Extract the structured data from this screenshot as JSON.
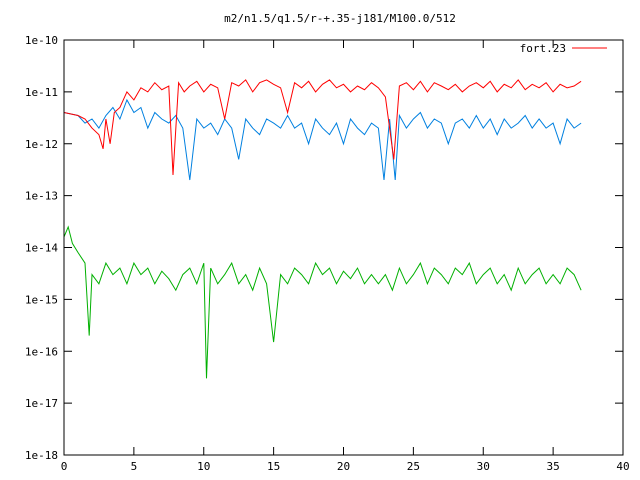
{
  "chart_data": {
    "type": "line",
    "title": "m2/n1.5/q1.5/r-+.35-j181/M100.0/512",
    "xlabel": "",
    "ylabel": "",
    "xlim": [
      0,
      40
    ],
    "ylim": [
      1e-18,
      1e-10
    ],
    "yscale": "log",
    "grid": false,
    "legend_position": "top-right",
    "x_ticks": [
      0,
      5,
      10,
      15,
      20,
      25,
      30,
      35,
      40
    ],
    "x_tick_labels": [
      "0",
      "5",
      "10",
      "15",
      "20",
      "25",
      "30",
      "35",
      "40"
    ],
    "y_ticks": [
      1e-10,
      1e-11,
      1e-12,
      1e-13,
      1e-14,
      1e-15,
      1e-16,
      1e-17,
      1e-18
    ],
    "y_tick_labels": [
      "1e-10",
      "1e-11",
      "1e-12",
      "1e-13",
      "1e-14",
      "1e-15",
      "1e-16",
      "1e-17",
      "1e-18"
    ],
    "series": [
      {
        "name": "fort.23",
        "color": "#ff0000",
        "x": [
          0,
          1,
          1.5,
          2,
          2.5,
          2.8,
          3,
          3.3,
          3.6,
          4,
          4.5,
          5,
          5.5,
          6,
          6.5,
          7,
          7.5,
          7.8,
          8.2,
          8.6,
          9,
          9.5,
          10,
          10.5,
          11,
          11.5,
          12,
          12.5,
          13,
          13.5,
          14,
          14.5,
          15,
          15.5,
          16,
          16.5,
          17,
          17.5,
          18,
          18.5,
          19,
          19.5,
          20,
          20.5,
          21,
          21.5,
          22,
          22.5,
          23,
          23.3,
          23.6,
          24,
          24.5,
          25,
          25.5,
          26,
          26.5,
          27,
          27.5,
          28,
          28.5,
          29,
          29.5,
          30,
          30.5,
          31,
          31.5,
          32,
          32.5,
          33,
          33.5,
          34,
          34.5,
          35,
          35.5,
          36,
          36.5,
          37
        ],
        "y": [
          4e-12,
          3.5e-12,
          3e-12,
          2e-12,
          1.5e-12,
          8e-13,
          3e-12,
          1e-12,
          4e-12,
          5e-12,
          1e-11,
          7e-12,
          1.2e-11,
          1e-11,
          1.5e-11,
          1.1e-11,
          1.3e-11,
          2.5e-13,
          1.5e-11,
          1e-11,
          1.3e-11,
          1.6e-11,
          1e-11,
          1.4e-11,
          1.2e-11,
          3e-12,
          1.5e-11,
          1.3e-11,
          1.7e-11,
          1e-11,
          1.5e-11,
          1.7e-11,
          1.4e-11,
          1.2e-11,
          4e-12,
          1.5e-11,
          1.2e-11,
          1.6e-11,
          1e-11,
          1.4e-11,
          1.7e-11,
          1.2e-11,
          1.4e-11,
          1e-11,
          1.3e-11,
          1.1e-11,
          1.5e-11,
          1.2e-11,
          8e-12,
          2e-12,
          5e-13,
          1.3e-11,
          1.5e-11,
          1.1e-11,
          1.6e-11,
          1e-11,
          1.5e-11,
          1.3e-11,
          1.1e-11,
          1.4e-11,
          1e-11,
          1.3e-11,
          1.5e-11,
          1.2e-11,
          1.6e-11,
          1e-11,
          1.4e-11,
          1.2e-11,
          1.7e-11,
          1.1e-11,
          1.4e-11,
          1.2e-11,
          1.5e-11,
          1e-11,
          1.4e-11,
          1.2e-11,
          1.3e-11,
          1.6e-11
        ]
      },
      {
        "name": "",
        "color": "#0080e0",
        "x": [
          0,
          1,
          1.5,
          2,
          2.5,
          3,
          3.5,
          4,
          4.5,
          5,
          5.5,
          6,
          6.5,
          7,
          7.5,
          8,
          8.5,
          9,
          9.5,
          10,
          10.5,
          11,
          11.5,
          12,
          12.5,
          13,
          13.5,
          14,
          14.5,
          15,
          15.5,
          16,
          16.5,
          17,
          17.5,
          18,
          18.5,
          19,
          19.5,
          20,
          20.5,
          21,
          21.5,
          22,
          22.5,
          22.9,
          23.3,
          23.7,
          24,
          24.5,
          25,
          25.5,
          26,
          26.5,
          27,
          27.5,
          28,
          28.5,
          29,
          29.5,
          30,
          30.5,
          31,
          31.5,
          32,
          32.5,
          33,
          33.5,
          34,
          34.5,
          35,
          35.5,
          36,
          36.5,
          37
        ],
        "y": [
          4e-12,
          3.5e-12,
          2.5e-12,
          3e-12,
          2e-12,
          3.5e-12,
          5e-12,
          3e-12,
          7e-12,
          4e-12,
          5e-12,
          2e-12,
          4e-12,
          3e-12,
          2.5e-12,
          3.5e-12,
          2e-12,
          2e-13,
          3e-12,
          2e-12,
          2.5e-12,
          1.5e-12,
          3e-12,
          2e-12,
          5e-13,
          3e-12,
          2e-12,
          1.5e-12,
          3e-12,
          2.5e-12,
          2e-12,
          3.5e-12,
          2e-12,
          2.5e-12,
          1e-12,
          3e-12,
          2e-12,
          1.5e-12,
          2.5e-12,
          1e-12,
          3e-12,
          2e-12,
          1.5e-12,
          2.5e-12,
          2e-12,
          2e-13,
          3e-12,
          2e-13,
          3.5e-12,
          2e-12,
          3e-12,
          4e-12,
          2e-12,
          3e-12,
          2.5e-12,
          1e-12,
          2.5e-12,
          3e-12,
          2e-12,
          3.5e-12,
          2e-12,
          3e-12,
          1.5e-12,
          3e-12,
          2e-12,
          2.5e-12,
          3.5e-12,
          2e-12,
          3e-12,
          2e-12,
          2.5e-12,
          1e-12,
          3e-12,
          2e-12,
          2.5e-12
        ]
      },
      {
        "name": "",
        "color": "#00b000",
        "x": [
          0,
          0.3,
          0.6,
          1,
          1.5,
          1.8,
          2,
          2.5,
          3,
          3.5,
          4,
          4.5,
          5,
          5.5,
          6,
          6.5,
          7,
          7.5,
          8,
          8.5,
          9,
          9.5,
          10,
          10.2,
          10.5,
          11,
          11.5,
          12,
          12.5,
          13,
          13.5,
          14,
          14.5,
          15,
          15.5,
          16,
          16.5,
          17,
          17.5,
          18,
          18.5,
          19,
          19.5,
          20,
          20.5,
          21,
          21.5,
          22,
          22.5,
          23,
          23.5,
          24,
          24.5,
          25,
          25.5,
          26,
          26.5,
          27,
          27.5,
          28,
          28.5,
          29,
          29.5,
          30,
          30.5,
          31,
          31.5,
          32,
          32.5,
          33,
          33.5,
          34,
          34.5,
          35,
          35.5,
          36,
          36.5,
          37
        ],
        "y": [
          1.6e-14,
          2.5e-14,
          1.2e-14,
          8e-15,
          5e-15,
          2e-16,
          3e-15,
          2e-15,
          5e-15,
          3e-15,
          4e-15,
          2e-15,
          5e-15,
          3e-15,
          4e-15,
          2e-15,
          3.5e-15,
          2.5e-15,
          1.5e-15,
          3e-15,
          4e-15,
          2e-15,
          5e-15,
          3e-17,
          4e-15,
          2e-15,
          3e-15,
          5e-15,
          2e-15,
          3e-15,
          1.5e-15,
          4e-15,
          2e-15,
          1.5e-16,
          3e-15,
          2e-15,
          4e-15,
          3e-15,
          2e-15,
          5e-15,
          3e-15,
          4e-15,
          2e-15,
          3.5e-15,
          2.5e-15,
          4e-15,
          2e-15,
          3e-15,
          2e-15,
          3e-15,
          1.5e-15,
          4e-15,
          2e-15,
          3e-15,
          5e-15,
          2e-15,
          4e-15,
          3e-15,
          2e-15,
          4e-15,
          3e-15,
          5e-15,
          2e-15,
          3e-15,
          4e-15,
          2e-15,
          3e-15,
          1.5e-15,
          4e-15,
          2e-15,
          3e-15,
          4e-15,
          2e-15,
          3e-15,
          2e-15,
          4e-15,
          3e-15,
          1.5e-15
        ]
      }
    ]
  }
}
